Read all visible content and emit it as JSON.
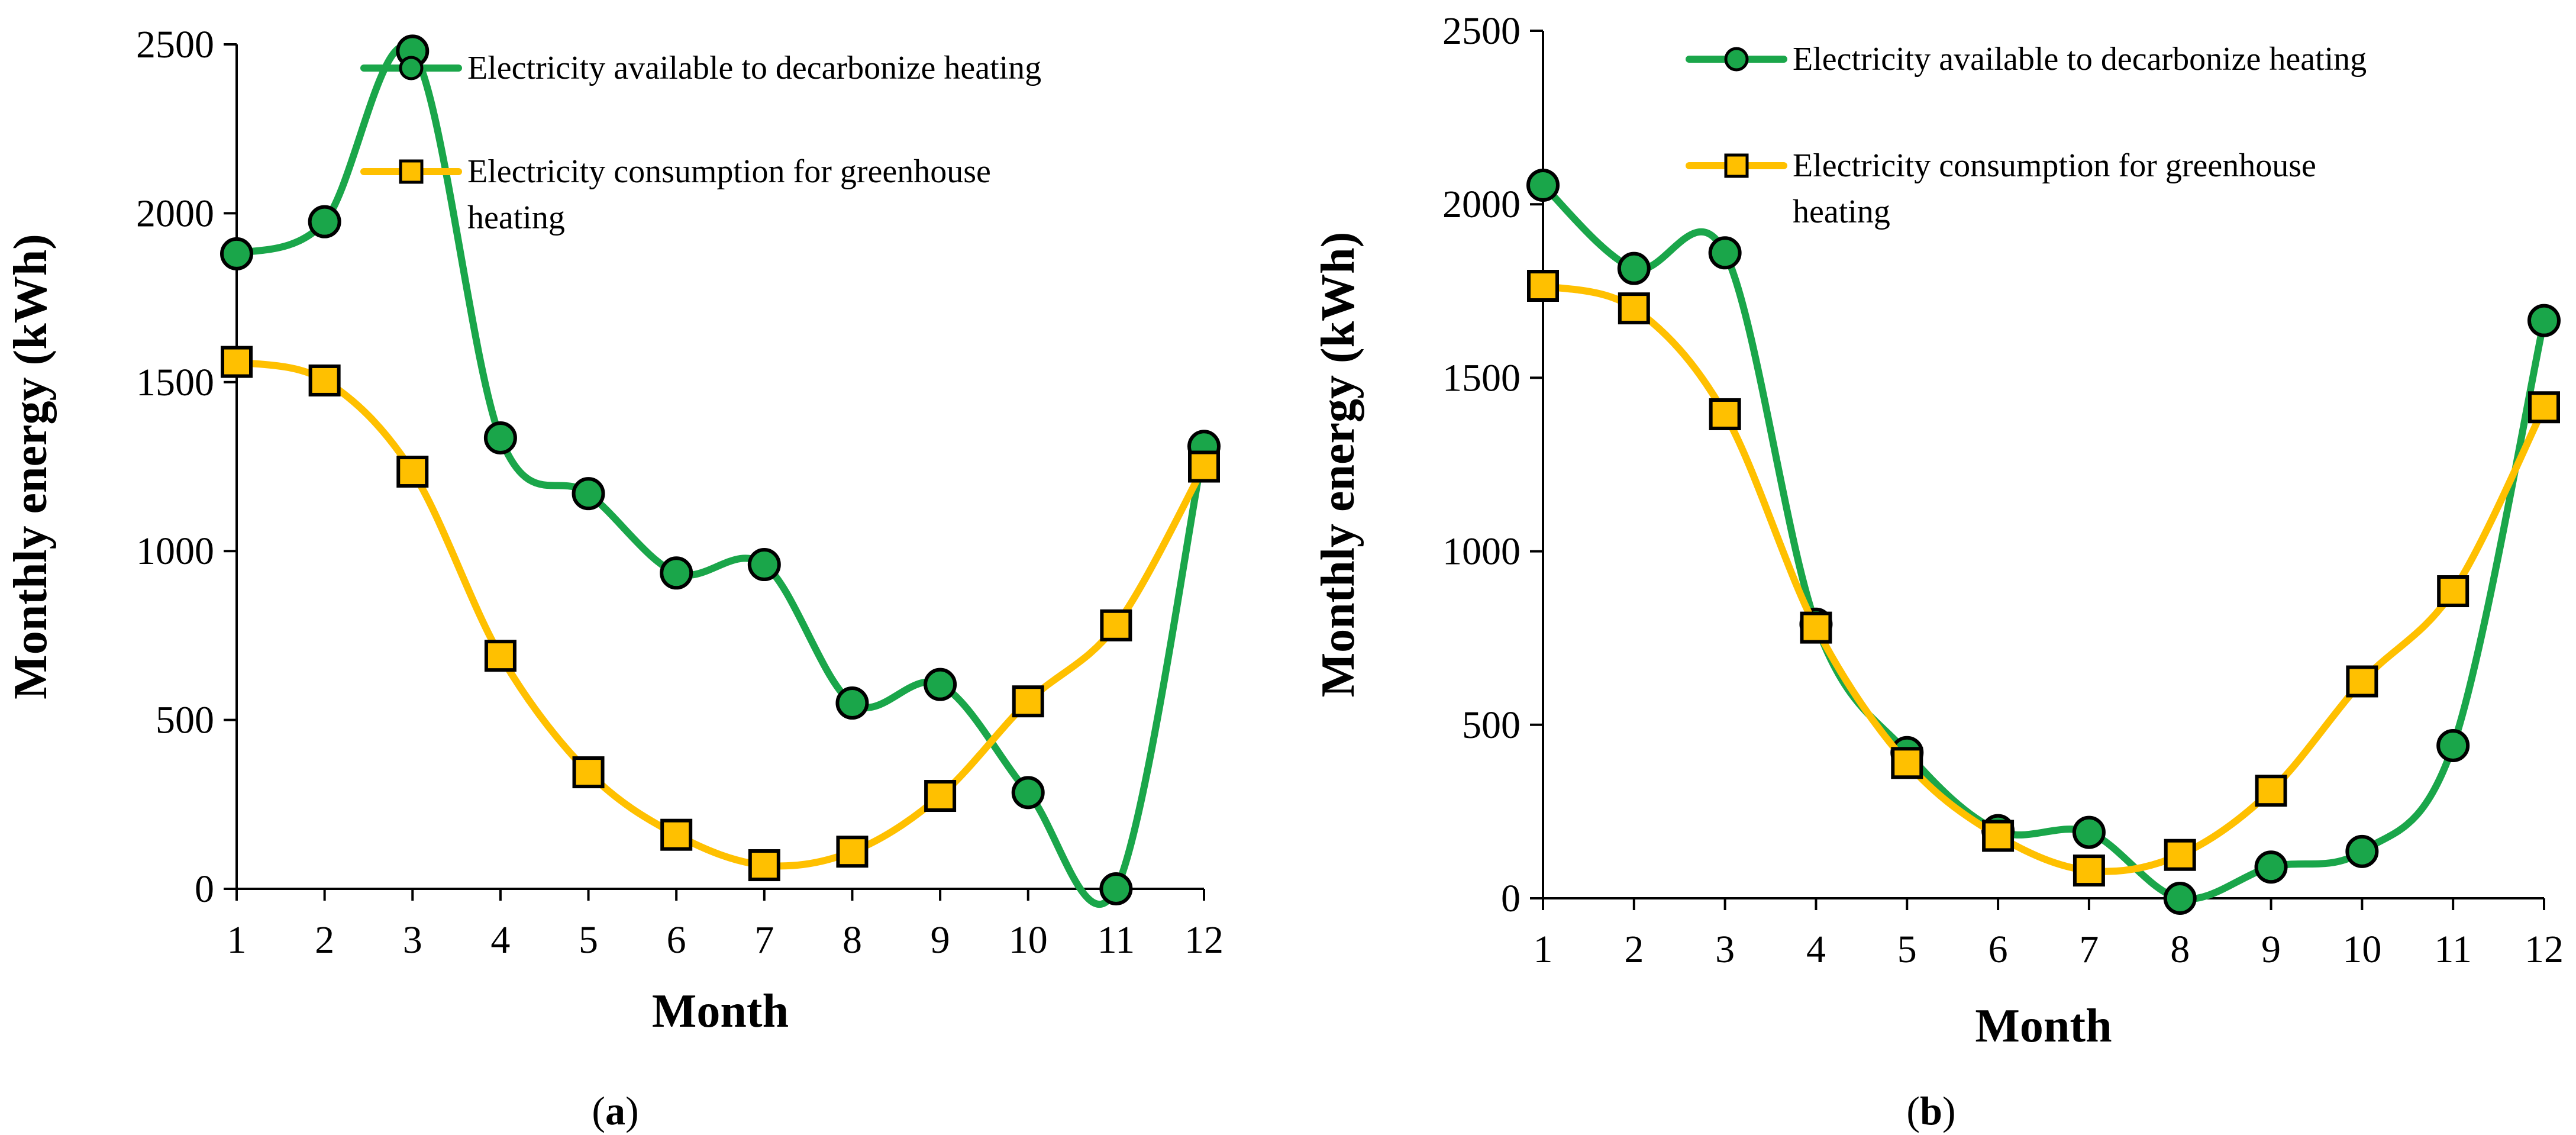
{
  "figure": {
    "panels": [
      {
        "label_open": "(",
        "label_letter": "a",
        "label_close": ")"
      },
      {
        "label_open": "(",
        "label_letter": "b",
        "label_close": ")"
      }
    ]
  },
  "colors": {
    "available_line": "#1aa64a",
    "available_marker": "#1aa64a",
    "consumption_line": "#ffc000",
    "consumption_marker": "#ffc000",
    "marker_edge": "#000000",
    "axis": "#000000"
  },
  "chart_data": [
    {
      "type": "line",
      "panel": "a",
      "title": "",
      "xlabel": "Month",
      "ylabel": "Monthly energy (kWh)",
      "x": [
        1,
        2,
        3,
        4,
        5,
        6,
        7,
        8,
        9,
        10,
        11,
        12
      ],
      "xlim": [
        1,
        12
      ],
      "ylim": [
        0,
        2500
      ],
      "yticks": [
        0,
        500,
        1000,
        1500,
        2000,
        2500
      ],
      "grid": false,
      "legend_position": "top-right",
      "series": [
        {
          "name": "Electricity available to decarbonize heating",
          "legend_lines": [
            "Electricity available to decarbonize heating"
          ],
          "marker": "circle",
          "values": [
            1880,
            1975,
            2480,
            1335,
            1170,
            935,
            960,
            550,
            605,
            285,
            0,
            1310
          ]
        },
        {
          "name": "Electricity consumption for greenhouse heating",
          "legend_lines": [
            "Electricity consumption for greenhouse",
            "heating"
          ],
          "marker": "square",
          "values": [
            1560,
            1505,
            1235,
            690,
            345,
            160,
            70,
            110,
            275,
            555,
            780,
            1250
          ]
        }
      ]
    },
    {
      "type": "line",
      "panel": "b",
      "title": "",
      "xlabel": "Month",
      "ylabel": "Monthly energy (kWh)",
      "x": [
        1,
        2,
        3,
        4,
        5,
        6,
        7,
        8,
        9,
        10,
        11,
        12
      ],
      "xlim": [
        1,
        12
      ],
      "ylim": [
        0,
        2500
      ],
      "yticks": [
        0,
        500,
        1000,
        1500,
        2000,
        2500
      ],
      "grid": false,
      "legend_position": "top-right",
      "series": [
        {
          "name": "Electricity available to decarbonize heating",
          "legend_lines": [
            "Electricity available to decarbonize heating"
          ],
          "marker": "circle",
          "values": [
            2055,
            1815,
            1860,
            790,
            420,
            195,
            190,
            0,
            90,
            135,
            440,
            1665
          ]
        },
        {
          "name": "Electricity consumption for greenhouse heating",
          "legend_lines": [
            "Electricity consumption for greenhouse",
            "heating"
          ],
          "marker": "square",
          "values": [
            1765,
            1700,
            1395,
            780,
            390,
            180,
            80,
            125,
            310,
            625,
            885,
            1415
          ]
        }
      ]
    }
  ]
}
